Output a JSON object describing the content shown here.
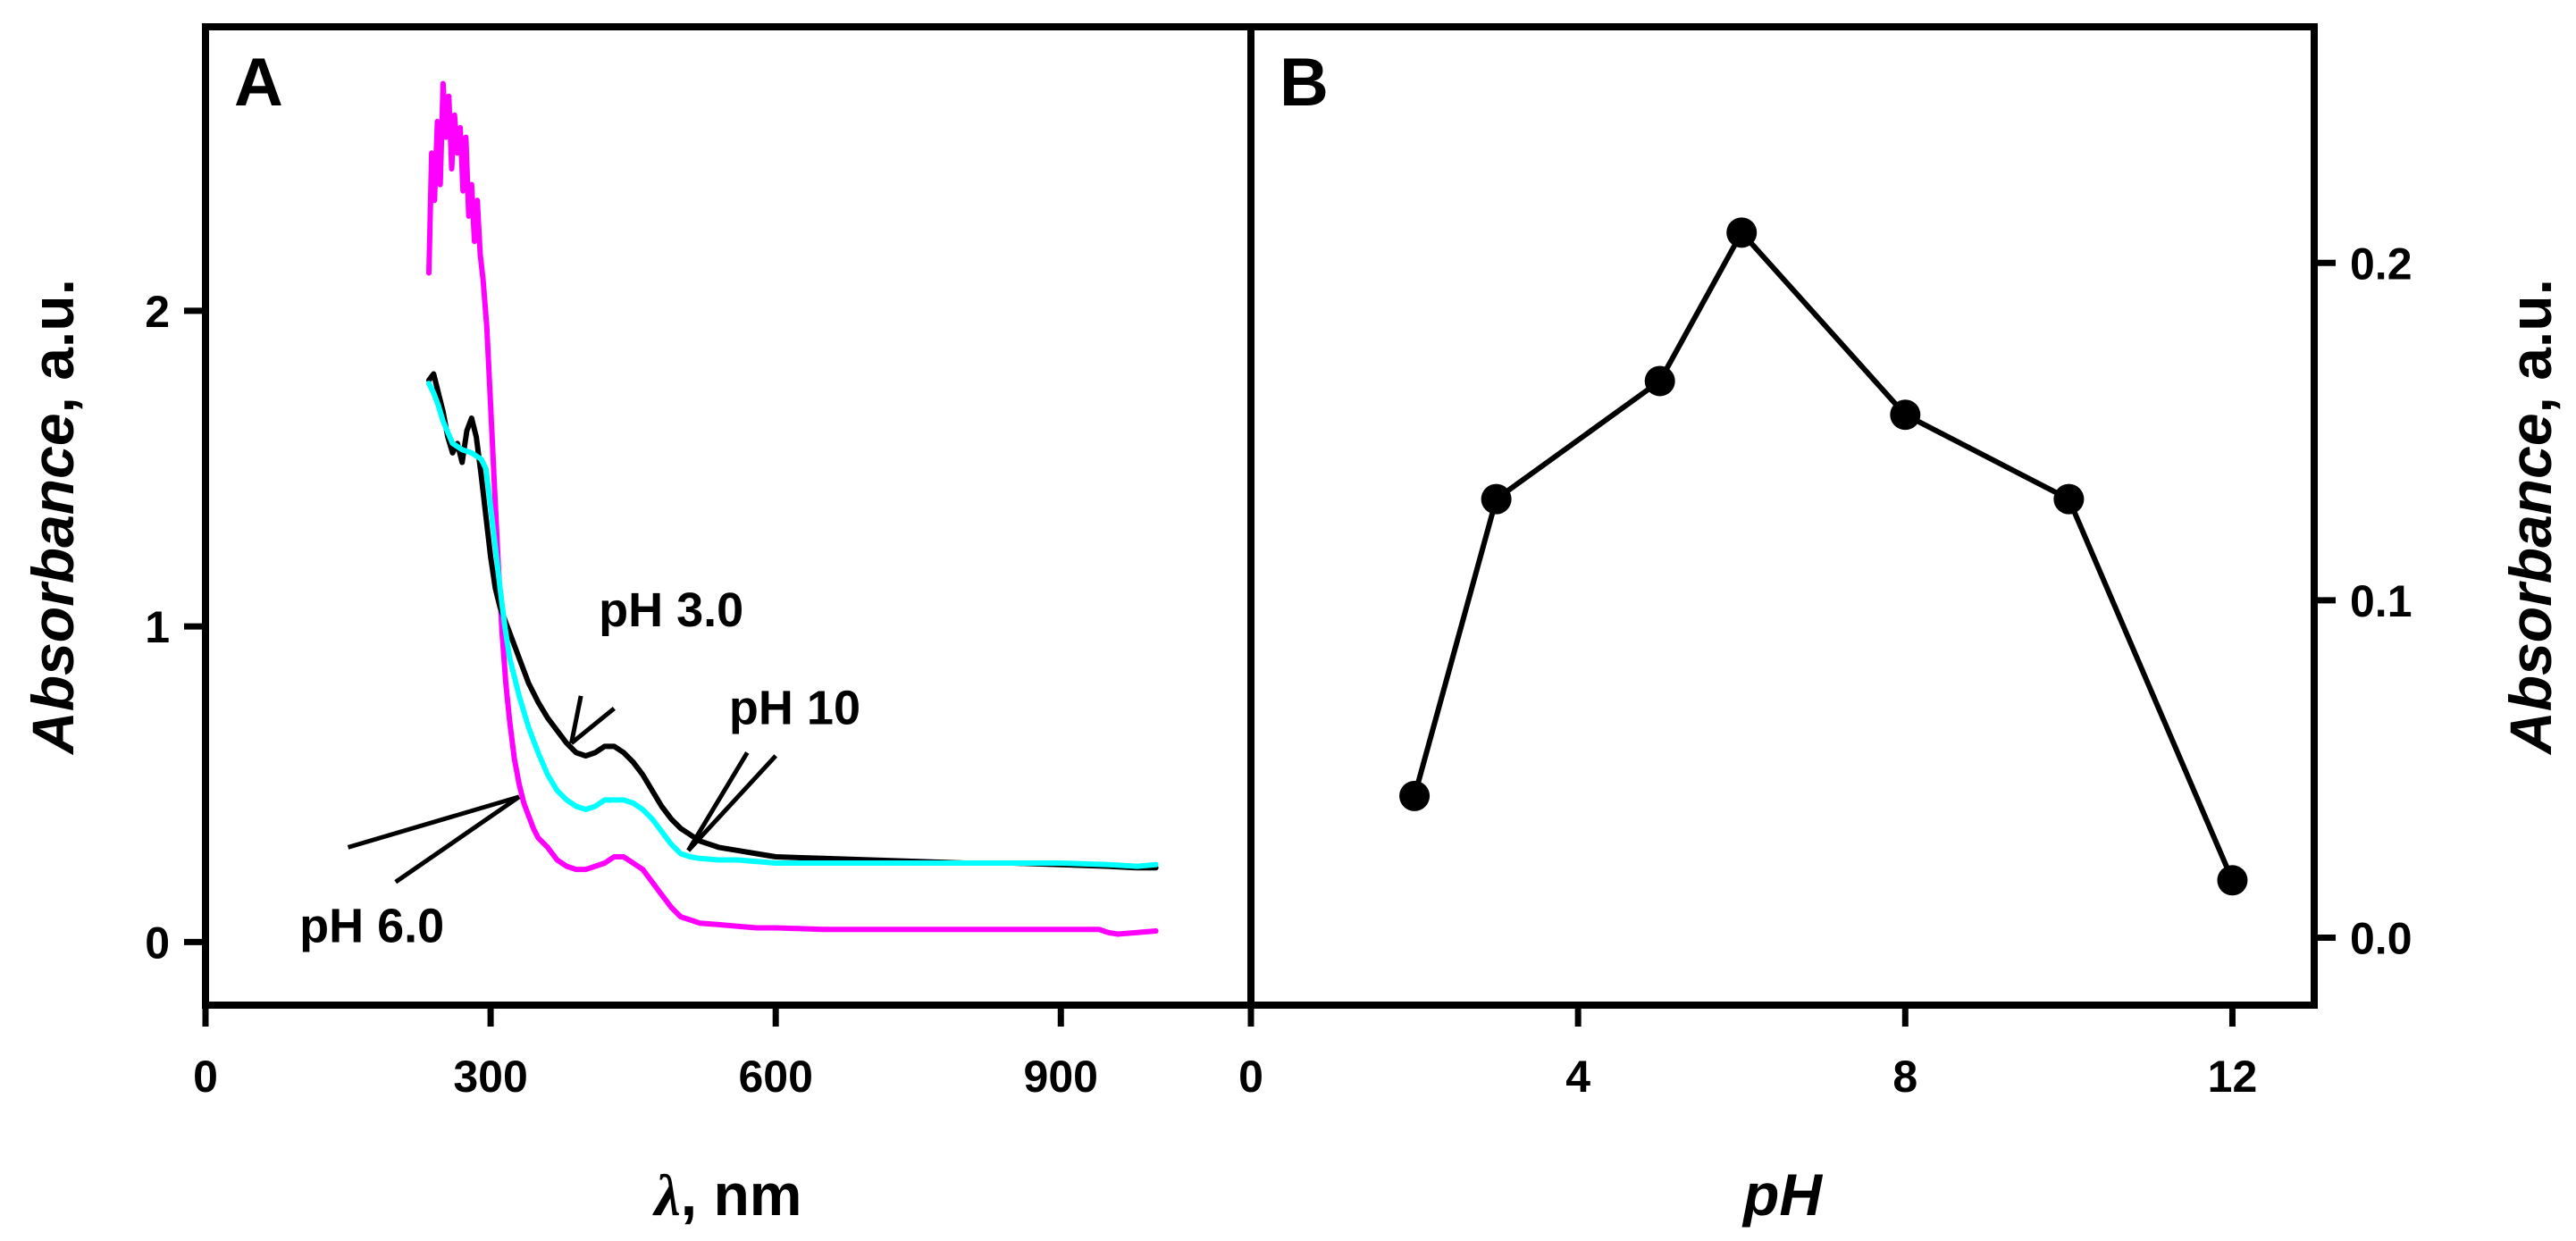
{
  "chart_data": [
    {
      "panel": "A",
      "type": "line",
      "xlabel_symbol": "λ",
      "xlabel_unit": ", nm",
      "ylabel_italic": "Absorbance",
      "ylabel_rest": ", a.u.",
      "xlim": [
        0,
        1100
      ],
      "ylim": [
        -0.2,
        2.9
      ],
      "xticks": [
        0,
        300,
        600,
        900
      ],
      "xtick_labels": [
        "0",
        "300",
        "600",
        "900"
      ],
      "yticks": [
        0,
        1,
        2
      ],
      "ytick_labels": [
        "0",
        "1",
        "2"
      ],
      "series": [
        {
          "name": "pH 6.0",
          "color": "#ff00ff",
          "x": [
            235,
            238,
            241,
            244,
            247,
            250,
            253,
            256,
            259,
            262,
            265,
            268,
            271,
            274,
            277,
            280,
            283,
            286,
            289,
            292,
            296,
            300,
            304,
            308,
            312,
            316,
            320,
            325,
            330,
            335,
            340,
            345,
            350,
            360,
            370,
            380,
            390,
            400,
            410,
            420,
            430,
            440,
            450,
            460,
            470,
            480,
            490,
            500,
            510,
            520,
            540,
            560,
            580,
            600,
            650,
            700,
            750,
            800,
            850,
            900,
            940,
            950,
            960,
            980,
            1000
          ],
          "y": [
            2.12,
            2.5,
            2.35,
            2.6,
            2.4,
            2.72,
            2.55,
            2.68,
            2.45,
            2.62,
            2.5,
            2.58,
            2.38,
            2.55,
            2.3,
            2.4,
            2.22,
            2.35,
            2.18,
            2.1,
            1.95,
            1.7,
            1.45,
            1.2,
            0.98,
            0.82,
            0.7,
            0.58,
            0.5,
            0.44,
            0.4,
            0.36,
            0.33,
            0.3,
            0.26,
            0.24,
            0.23,
            0.23,
            0.24,
            0.25,
            0.27,
            0.27,
            0.25,
            0.23,
            0.19,
            0.15,
            0.11,
            0.08,
            0.07,
            0.06,
            0.055,
            0.05,
            0.045,
            0.045,
            0.04,
            0.04,
            0.04,
            0.04,
            0.04,
            0.04,
            0.04,
            0.03,
            0.025,
            0.03,
            0.035
          ]
        },
        {
          "name": "pH 3.0",
          "color": "#000000",
          "x": [
            235,
            240,
            245,
            250,
            255,
            260,
            265,
            270,
            275,
            280,
            285,
            290,
            295,
            300,
            305,
            310,
            320,
            330,
            340,
            350,
            360,
            370,
            380,
            390,
            400,
            410,
            420,
            430,
            440,
            450,
            460,
            470,
            480,
            490,
            500,
            520,
            540,
            560,
            580,
            600,
            650,
            700,
            750,
            800,
            850,
            900,
            950,
            980,
            1000
          ],
          "y": [
            1.78,
            1.8,
            1.74,
            1.68,
            1.6,
            1.55,
            1.58,
            1.52,
            1.62,
            1.66,
            1.6,
            1.48,
            1.35,
            1.22,
            1.12,
            1.06,
            0.98,
            0.9,
            0.82,
            0.76,
            0.71,
            0.67,
            0.63,
            0.6,
            0.59,
            0.6,
            0.62,
            0.62,
            0.6,
            0.57,
            0.53,
            0.48,
            0.43,
            0.39,
            0.36,
            0.32,
            0.3,
            0.29,
            0.28,
            0.27,
            0.265,
            0.26,
            0.255,
            0.25,
            0.25,
            0.245,
            0.24,
            0.235,
            0.235
          ]
        },
        {
          "name": "pH 10",
          "color": "#00ffff",
          "x": [
            235,
            240,
            245,
            250,
            260,
            270,
            280,
            290,
            295,
            300,
            305,
            310,
            315,
            320,
            330,
            340,
            350,
            360,
            370,
            380,
            390,
            400,
            410,
            420,
            430,
            440,
            450,
            460,
            470,
            480,
            490,
            500,
            510,
            520,
            540,
            560,
            580,
            600,
            650,
            700,
            750,
            800,
            850,
            900,
            950,
            980,
            1000
          ],
          "y": [
            1.77,
            1.74,
            1.7,
            1.65,
            1.58,
            1.56,
            1.55,
            1.53,
            1.5,
            1.38,
            1.25,
            1.12,
            1.0,
            0.9,
            0.78,
            0.68,
            0.6,
            0.53,
            0.48,
            0.45,
            0.43,
            0.42,
            0.43,
            0.45,
            0.45,
            0.45,
            0.44,
            0.42,
            0.39,
            0.35,
            0.31,
            0.28,
            0.27,
            0.265,
            0.26,
            0.26,
            0.255,
            0.25,
            0.25,
            0.25,
            0.25,
            0.25,
            0.25,
            0.25,
            0.245,
            0.24,
            0.245
          ]
        }
      ],
      "annotations": [
        {
          "text": "pH 3.0",
          "label_x": 490,
          "label_y": 1.0,
          "arrows": [
            [
              [
                395,
                0.78
              ],
              [
                385,
                0.63
              ]
            ],
            [
              [
                430,
                0.74
              ],
              [
                385,
                0.63
              ]
            ]
          ]
        },
        {
          "text": "pH 10",
          "label_x": 620,
          "label_y": 0.69,
          "arrows": [
            [
              [
                570,
                0.6
              ],
              [
                508,
                0.29
              ]
            ],
            [
              [
                600,
                0.59
              ],
              [
                508,
                0.29
              ]
            ]
          ]
        },
        {
          "text": "pH 6.0",
          "label_x": 175,
          "label_y": 0.0,
          "arrows": [
            [
              [
                150,
                0.3
              ],
              [
                330,
                0.46
              ]
            ],
            [
              [
                200,
                0.19
              ],
              [
                330,
                0.46
              ]
            ]
          ]
        }
      ]
    },
    {
      "panel": "B",
      "type": "line",
      "marker": "circle",
      "color": "#000000",
      "xlabel": "pH",
      "ylabel_italic": "Absorbance",
      "ylabel_rest": ", a.u.",
      "xlim": [
        0,
        13
      ],
      "ylim": [
        -0.02,
        0.27
      ],
      "xticks": [
        0,
        4,
        8,
        12
      ],
      "xtick_labels": [
        "0",
        "4",
        "8",
        "12"
      ],
      "yticks": [
        0.0,
        0.1,
        0.2
      ],
      "ytick_labels": [
        "0.0",
        "0.1",
        "0.2"
      ],
      "series": [
        {
          "name": "Absorbance",
          "x": [
            2,
            3,
            5,
            6,
            8,
            10,
            12
          ],
          "y": [
            0.042,
            0.13,
            0.165,
            0.209,
            0.155,
            0.13,
            0.017
          ]
        }
      ]
    }
  ]
}
